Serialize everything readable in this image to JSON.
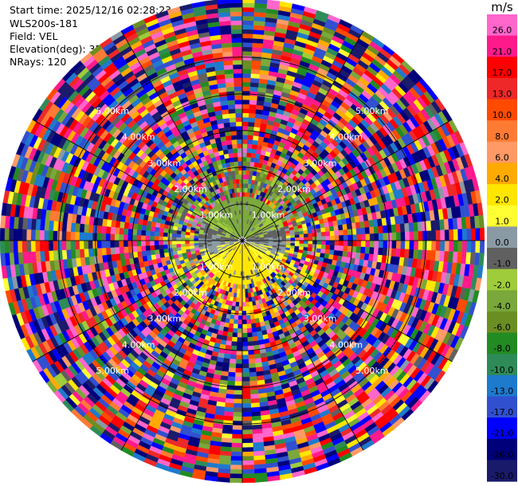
{
  "info": {
    "start_time": "Start time: 2025/12/16 02:28:23",
    "instrument": "WLS200s-181",
    "field": "Field: VEL",
    "elevation": "Elevation(deg): 35.00",
    "nrays": "NRays: 120"
  },
  "chart_data": {
    "type": "heatmap",
    "projection": "polar-ppi",
    "field": "VEL",
    "units": "m/s",
    "n_rays": 120,
    "elevation_deg": 35.0,
    "range_rings_km": [
      1.0,
      2.0,
      3.0,
      4.0,
      5.0
    ],
    "ring_labels": [
      "1.00km",
      "2.00km",
      "3.00km",
      "4.00km",
      "5.00km"
    ],
    "max_range_km": 6.6,
    "colorbar": {
      "unit_label": "m/s",
      "ticks": [
        "26.0",
        "21.0",
        "17.0",
        "13.0",
        "10.0",
        "8.0",
        "6.0",
        "4.0",
        "2.0",
        "1.0",
        "0.0",
        "-1.0",
        "-2.0",
        "-4.0",
        "-6.0",
        "-8.0",
        "-10.0",
        "-13.0",
        "-17.0",
        "-21.0",
        "-26.0",
        "-30.0"
      ],
      "bins": [
        {
          "min": 26,
          "max": 30,
          "color": "#ff66cc"
        },
        {
          "min": 21,
          "max": 26,
          "color": "#ff1a8c"
        },
        {
          "min": 17,
          "max": 21,
          "color": "#ff0000"
        },
        {
          "min": 13,
          "max": 17,
          "color": "#ee2828"
        },
        {
          "min": 10,
          "max": 13,
          "color": "#ff4a00"
        },
        {
          "min": 8,
          "max": 10,
          "color": "#ff7a33"
        },
        {
          "min": 6,
          "max": 8,
          "color": "#ff9a66"
        },
        {
          "min": 4,
          "max": 6,
          "color": "#ffaa00"
        },
        {
          "min": 2,
          "max": 4,
          "color": "#ffe600"
        },
        {
          "min": 1,
          "max": 2,
          "color": "#ffff33"
        },
        {
          "min": 0,
          "max": 1,
          "color": "#8a9aa4"
        },
        {
          "min": -1,
          "max": 0,
          "color": "#606060"
        },
        {
          "min": -2,
          "max": -1,
          "color": "#9fcc3a"
        },
        {
          "min": -4,
          "max": -2,
          "color": "#7aa83a"
        },
        {
          "min": -6,
          "max": -4,
          "color": "#6b8e23"
        },
        {
          "min": -8,
          "max": -6,
          "color": "#228b22"
        },
        {
          "min": -10,
          "max": -8,
          "color": "#2e8b57"
        },
        {
          "min": -13,
          "max": -10,
          "color": "#1e7acd"
        },
        {
          "min": -17,
          "max": -13,
          "color": "#3050d0"
        },
        {
          "min": -21,
          "max": -17,
          "color": "#0000ff"
        },
        {
          "min": -26,
          "max": -21,
          "color": "#00007a"
        },
        {
          "min": -30,
          "max": -26,
          "color": "#1a1a6b"
        }
      ]
    }
  }
}
